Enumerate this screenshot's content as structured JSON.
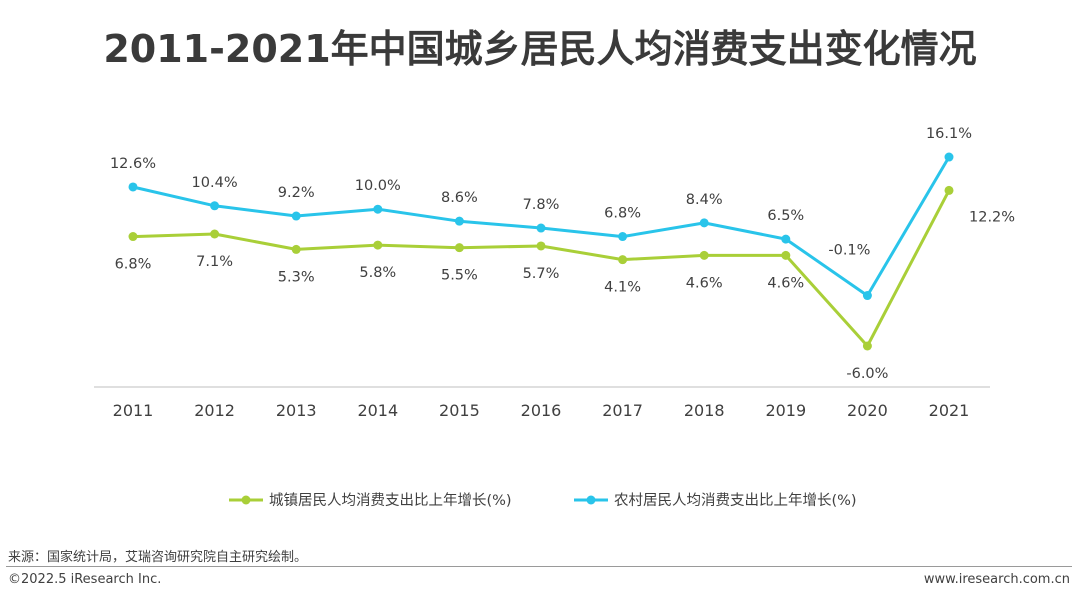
{
  "chart_data": {
    "type": "line",
    "title": "2011-2021年中国城乡居民人均消费支出变化情况",
    "categories": [
      "2011",
      "2012",
      "2013",
      "2014",
      "2015",
      "2016",
      "2017",
      "2018",
      "2019",
      "2020",
      "2021"
    ],
    "series": [
      {
        "name": "城镇居民人均消费支出比上年增长(%)",
        "color": "#a9cf38",
        "values": [
          6.8,
          7.1,
          5.3,
          5.8,
          5.5,
          5.7,
          4.1,
          4.6,
          4.6,
          -6.0,
          12.2
        ],
        "labels": [
          "6.8%",
          "7.1%",
          "5.3%",
          "5.8%",
          "5.5%",
          "5.7%",
          "4.1%",
          "4.6%",
          "4.6%",
          "-6.0%",
          "12.2%"
        ]
      },
      {
        "name": "农村居民人均消费支出比上年增长(%)",
        "color": "#29c4ea",
        "values": [
          12.6,
          10.4,
          9.2,
          10.0,
          8.6,
          7.8,
          6.8,
          8.4,
          6.5,
          -0.1,
          16.1
        ],
        "labels": [
          "12.6%",
          "10.4%",
          "9.2%",
          "10.0%",
          "8.6%",
          "7.8%",
          "6.8%",
          "8.4%",
          "6.5%",
          "-0.1%",
          "16.1%"
        ]
      }
    ],
    "ylim": [
      -10,
      20
    ],
    "grid": false,
    "legend": "bottom"
  },
  "footer": {
    "source": "来源：国家统计局，艾瑞咨询研究院自主研究绘制。",
    "copyright": "©2022.5 iResearch Inc.",
    "website": "www.iresearch.com.cn"
  }
}
